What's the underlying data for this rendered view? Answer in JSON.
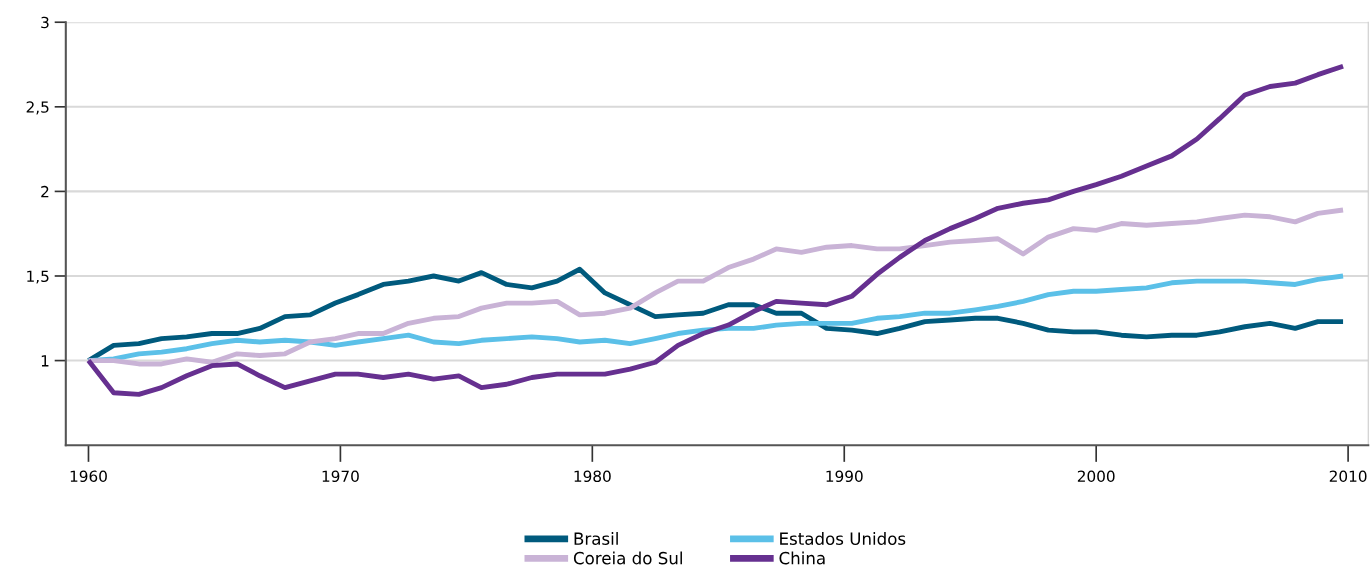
{
  "chart_data": {
    "type": "line",
    "x": [
      1960.0,
      1961.0,
      1962.0,
      1962.9,
      1963.9,
      1964.9,
      1965.9,
      1966.8,
      1967.8,
      1968.8,
      1969.8,
      1970.7,
      1971.7,
      1972.7,
      1973.7,
      1974.7,
      1975.6,
      1976.6,
      1977.6,
      1978.6,
      1979.5,
      1980.5,
      1981.5,
      1982.5,
      1983.4,
      1984.4,
      1985.4,
      1986.4,
      1987.3,
      1988.3,
      1989.3,
      1990.3,
      1991.3,
      1992.2,
      1993.2,
      1994.2,
      1995.2,
      1996.1,
      1997.1,
      1998.1,
      1999.1,
      2000.0,
      2001.0,
      2002.0,
      2003.0,
      2004.0,
      2004.9,
      2005.9,
      2006.9,
      2007.9,
      2008.8,
      2009.8
    ],
    "series": [
      {
        "name": "Brasil",
        "color": "#005a7d",
        "values": [
          1.0,
          1.09,
          1.1,
          1.13,
          1.14,
          1.16,
          1.16,
          1.19,
          1.26,
          1.27,
          1.34,
          1.39,
          1.45,
          1.47,
          1.5,
          1.47,
          1.52,
          1.45,
          1.43,
          1.47,
          1.54,
          1.4,
          1.33,
          1.26,
          1.27,
          1.28,
          1.33,
          1.33,
          1.28,
          1.28,
          1.19,
          1.18,
          1.16,
          1.19,
          1.23,
          1.24,
          1.25,
          1.25,
          1.22,
          1.18,
          1.17,
          1.17,
          1.15,
          1.14,
          1.15,
          1.15,
          1.17,
          1.2,
          1.22,
          1.19,
          1.23,
          1.23
        ]
      },
      {
        "name": "Estados Unidos",
        "color": "#5bc0e8",
        "values": [
          1.0,
          1.01,
          1.04,
          1.05,
          1.07,
          1.1,
          1.12,
          1.11,
          1.12,
          1.11,
          1.09,
          1.11,
          1.13,
          1.15,
          1.11,
          1.1,
          1.12,
          1.13,
          1.14,
          1.13,
          1.11,
          1.12,
          1.1,
          1.13,
          1.16,
          1.18,
          1.19,
          1.19,
          1.21,
          1.22,
          1.22,
          1.22,
          1.25,
          1.26,
          1.28,
          1.28,
          1.3,
          1.32,
          1.35,
          1.39,
          1.41,
          1.41,
          1.42,
          1.43,
          1.46,
          1.47,
          1.47,
          1.47,
          1.46,
          1.45,
          1.48,
          1.5
        ]
      },
      {
        "name": "Coreia do Sul",
        "color": "#c9b3d6",
        "values": [
          1.0,
          1.0,
          0.98,
          0.98,
          1.01,
          0.99,
          1.04,
          1.03,
          1.04,
          1.11,
          1.13,
          1.16,
          1.16,
          1.22,
          1.25,
          1.26,
          1.31,
          1.34,
          1.34,
          1.35,
          1.27,
          1.28,
          1.31,
          1.4,
          1.47,
          1.47,
          1.55,
          1.6,
          1.66,
          1.64,
          1.67,
          1.68,
          1.66,
          1.66,
          1.68,
          1.7,
          1.71,
          1.72,
          1.63,
          1.73,
          1.78,
          1.77,
          1.81,
          1.8,
          1.81,
          1.82,
          1.84,
          1.86,
          1.85,
          1.82,
          1.87,
          1.89
        ]
      },
      {
        "name": "China",
        "color": "#663090",
        "values": [
          1.0,
          0.81,
          0.8,
          0.84,
          0.91,
          0.97,
          0.98,
          0.91,
          0.84,
          0.88,
          0.92,
          0.92,
          0.9,
          0.92,
          0.89,
          0.91,
          0.84,
          0.86,
          0.9,
          0.92,
          0.92,
          0.92,
          0.95,
          0.99,
          1.09,
          1.16,
          1.21,
          1.29,
          1.35,
          1.34,
          1.33,
          1.38,
          1.51,
          1.61,
          1.71,
          1.78,
          1.84,
          1.9,
          1.93,
          1.95,
          2.0,
          2.04,
          2.09,
          2.15,
          2.21,
          2.31,
          2.43,
          2.57,
          2.62,
          2.64,
          2.69,
          2.74
        ]
      }
    ],
    "xlim": [
      1959.1,
      2010.8
    ],
    "xticks": [
      1960,
      1970,
      1980,
      1990,
      2000,
      2010
    ],
    "ylim": [
      0.5,
      3
    ],
    "yticks": [
      1,
      {
        "value": 1.5,
        "label": "1,5"
      },
      2,
      {
        "value": 2.5,
        "label": "2,5"
      },
      3
    ],
    "grid": "y",
    "legend": "bottom",
    "line_style": "solid",
    "marker": "none"
  }
}
